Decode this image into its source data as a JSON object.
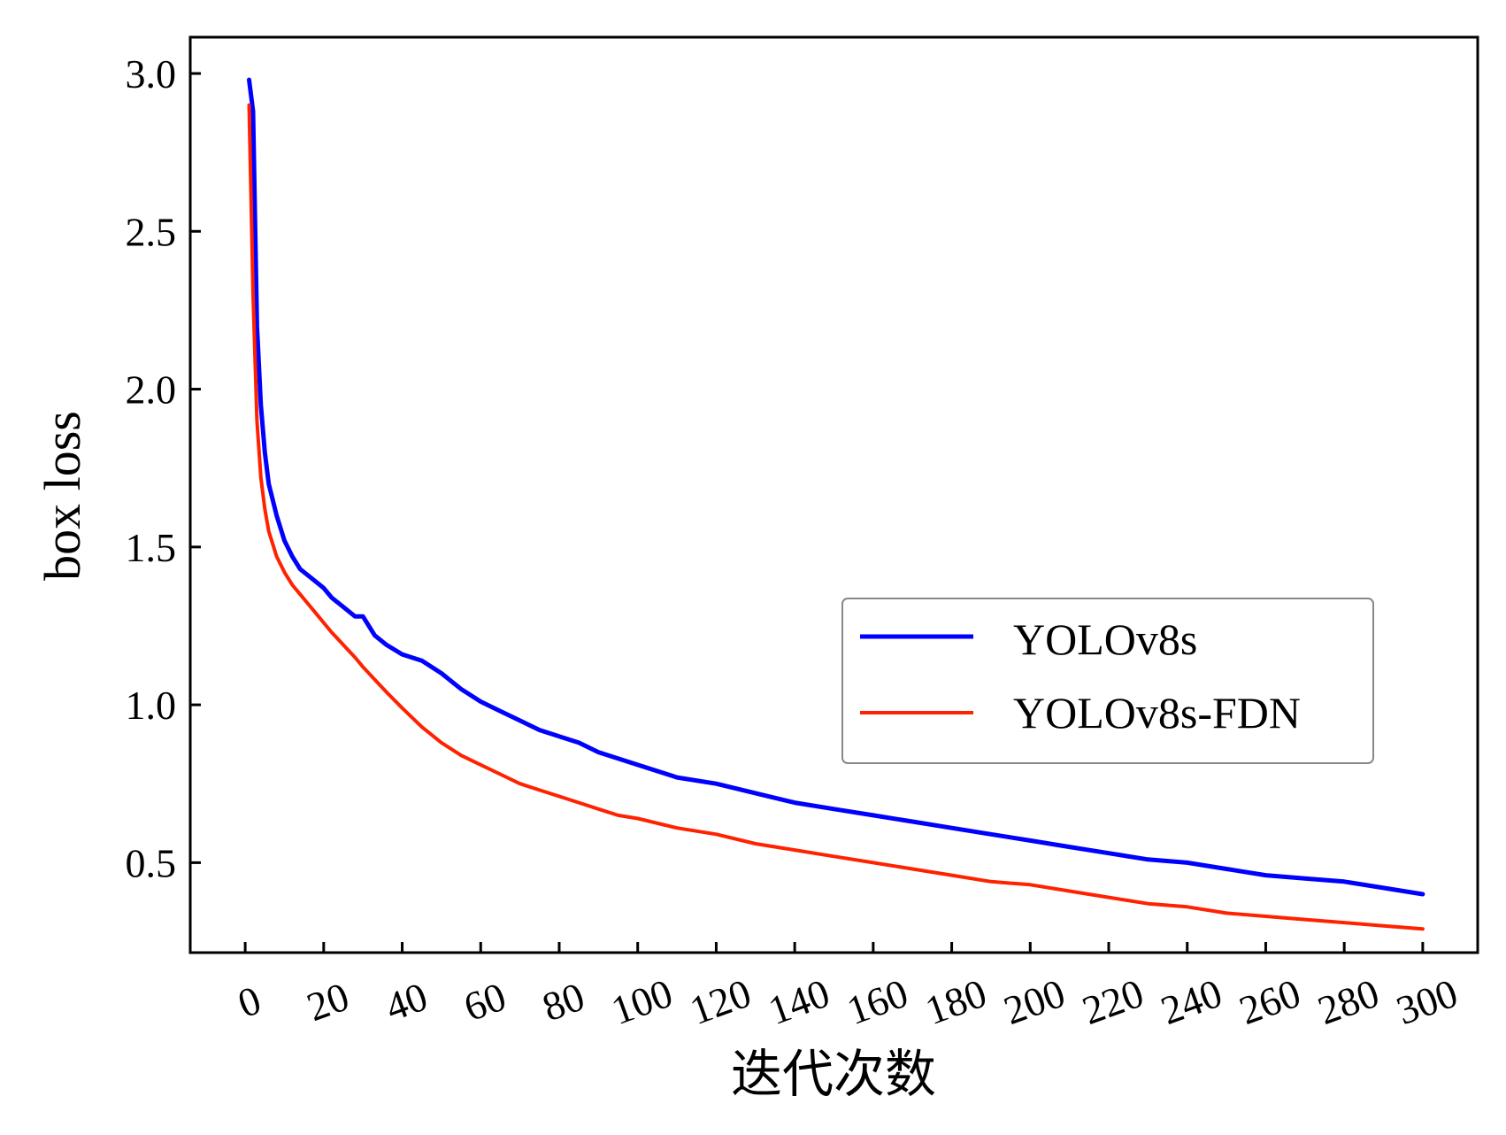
{
  "chart_data": {
    "type": "line",
    "title": "",
    "xlabel": "迭代次数",
    "ylabel": "box loss",
    "xlim": [
      -14,
      314
    ],
    "ylim": [
      0.215,
      3.115
    ],
    "x_ticks": [
      0,
      20,
      40,
      60,
      80,
      100,
      120,
      140,
      160,
      180,
      200,
      220,
      240,
      260,
      280,
      300
    ],
    "y_ticks": [
      0.5,
      1.0,
      1.5,
      2.0,
      2.5,
      3.0
    ],
    "x_tick_labels": [
      "0",
      "20",
      "40",
      "60",
      "80",
      "100",
      "120",
      "140",
      "160",
      "180",
      "200",
      "220",
      "240",
      "260",
      "280",
      "300"
    ],
    "y_tick_labels": [
      "0.5",
      "1.0",
      "1.5",
      "2.0",
      "2.5",
      "3.0"
    ],
    "grid": false,
    "legend_position": "center-right",
    "series": [
      {
        "name": "YOLOv8s",
        "color": "#0000ff",
        "x": [
          1,
          2,
          3,
          4,
          5,
          6,
          8,
          10,
          12,
          14,
          16,
          18,
          20,
          22,
          25,
          28,
          30,
          33,
          36,
          40,
          45,
          50,
          55,
          60,
          65,
          70,
          75,
          80,
          85,
          90,
          95,
          100,
          110,
          120,
          130,
          140,
          150,
          160,
          170,
          180,
          190,
          200,
          210,
          220,
          230,
          240,
          250,
          260,
          270,
          280,
          290,
          300
        ],
        "values": [
          2.98,
          2.88,
          2.2,
          1.95,
          1.8,
          1.7,
          1.6,
          1.52,
          1.47,
          1.43,
          1.41,
          1.39,
          1.37,
          1.34,
          1.31,
          1.28,
          1.28,
          1.22,
          1.19,
          1.16,
          1.14,
          1.1,
          1.05,
          1.01,
          0.98,
          0.95,
          0.92,
          0.9,
          0.88,
          0.85,
          0.83,
          0.81,
          0.77,
          0.75,
          0.72,
          0.69,
          0.67,
          0.65,
          0.63,
          0.61,
          0.59,
          0.57,
          0.55,
          0.53,
          0.51,
          0.5,
          0.48,
          0.46,
          0.45,
          0.44,
          0.42,
          0.4
        ]
      },
      {
        "name": "YOLOv8s-FDN",
        "color": "#ff2200",
        "x": [
          1,
          2,
          3,
          4,
          5,
          6,
          8,
          10,
          12,
          14,
          16,
          18,
          20,
          22,
          25,
          28,
          30,
          33,
          36,
          40,
          45,
          50,
          55,
          60,
          65,
          70,
          75,
          80,
          85,
          90,
          95,
          100,
          110,
          120,
          130,
          140,
          150,
          160,
          170,
          180,
          190,
          200,
          210,
          220,
          230,
          240,
          250,
          260,
          270,
          280,
          290,
          300
        ],
        "values": [
          2.9,
          2.3,
          1.9,
          1.72,
          1.62,
          1.55,
          1.47,
          1.42,
          1.38,
          1.35,
          1.32,
          1.29,
          1.26,
          1.23,
          1.19,
          1.15,
          1.12,
          1.08,
          1.04,
          0.99,
          0.93,
          0.88,
          0.84,
          0.81,
          0.78,
          0.75,
          0.73,
          0.71,
          0.69,
          0.67,
          0.65,
          0.64,
          0.61,
          0.59,
          0.56,
          0.54,
          0.52,
          0.5,
          0.48,
          0.46,
          0.44,
          0.43,
          0.41,
          0.39,
          0.37,
          0.36,
          0.34,
          0.33,
          0.32,
          0.31,
          0.3,
          0.29
        ]
      }
    ]
  }
}
